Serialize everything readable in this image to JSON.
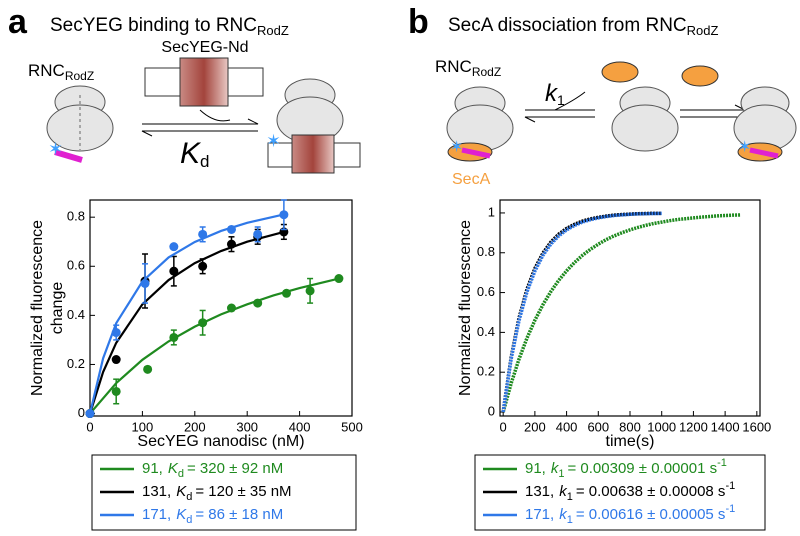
{
  "chart_data": [
    {
      "type": "scatter",
      "panel": "a",
      "title": "SecYEG binding to RNC",
      "title_sub": "RodZ",
      "schematic_labels": [
        "RNC",
        "RodZ",
        "SecYEG-Nd",
        "K",
        "d"
      ],
      "xlabel": "SecYEG nanodisc (nM)",
      "ylabel": [
        "Normalized fluorescence",
        "change"
      ],
      "xlim": [
        0,
        500
      ],
      "ylim": [
        -0.01,
        0.87
      ],
      "xticks": [
        0,
        100,
        200,
        300,
        400,
        500
      ],
      "yticks": [
        0,
        0.2,
        0.4,
        0.6,
        0.8
      ],
      "series": [
        {
          "name": "91,",
          "label": [
            "K",
            "d",
            "= 320 ± 92 nM"
          ],
          "color": "#1f8a1f",
          "x": [
            0,
            50,
            110,
            160,
            215,
            270,
            320,
            375,
            420,
            475
          ],
          "values": [
            0,
            0.09,
            0.18,
            0.31,
            0.37,
            0.43,
            0.45,
            0.49,
            0.5,
            0.55
          ],
          "errors": [
            null,
            0.05,
            null,
            0.03,
            0.05,
            null,
            null,
            null,
            0.05,
            null
          ],
          "fit_x": [
            0,
            50,
            100,
            150,
            200,
            250,
            300,
            350,
            400,
            475
          ],
          "fit_values": [
            0,
            0.124,
            0.219,
            0.294,
            0.354,
            0.404,
            0.445,
            0.481,
            0.511,
            0.55
          ]
        },
        {
          "name": "131,",
          "label": [
            "K",
            "d",
            "= 120 ± 35 nM"
          ],
          "color": "#000000",
          "x": [
            0,
            50,
            105,
            160,
            215,
            270,
            320,
            370
          ],
          "values": [
            0,
            0.22,
            0.54,
            0.58,
            0.6,
            0.69,
            0.72,
            0.74
          ],
          "errors": [
            null,
            null,
            0.11,
            0.06,
            0.03,
            0.03,
            0.03,
            0.03
          ],
          "fit_x": [
            0,
            25,
            50,
            100,
            150,
            200,
            250,
            300,
            370
          ],
          "fit_values": [
            0,
            0.169,
            0.288,
            0.445,
            0.544,
            0.613,
            0.662,
            0.7,
            0.74
          ]
        },
        {
          "name": "171,",
          "label": [
            "K",
            "d",
            "= 86 ± 18 nM"
          ],
          "color": "#2f78e8",
          "x": [
            0,
            50,
            105,
            160,
            215,
            270,
            320,
            370
          ],
          "values": [
            0,
            0.33,
            0.53,
            0.68,
            0.73,
            0.75,
            0.73,
            0.81
          ],
          "errors": [
            null,
            0.03,
            0.08,
            null,
            0.03,
            null,
            0.03,
            0.06
          ],
          "fit_x": [
            0,
            25,
            50,
            100,
            150,
            200,
            250,
            300,
            370
          ],
          "fit_values": [
            0,
            0.225,
            0.368,
            0.538,
            0.636,
            0.699,
            0.744,
            0.777,
            0.811
          ]
        }
      ]
    },
    {
      "type": "line",
      "panel": "b",
      "title": "SecA dissociation from RNC",
      "title_sub": "RodZ",
      "schematic_labels": [
        "RNC",
        "RodZ",
        "k",
        "1",
        "SecA"
      ],
      "xlabel": "time(s)",
      "ylabel": [
        "Normalized fluorescence"
      ],
      "xlim": [
        -20,
        1620
      ],
      "ylim": [
        -0.02,
        1.065
      ],
      "xticks": [
        0,
        200,
        400,
        600,
        800,
        1000,
        1200,
        1400,
        1600
      ],
      "yticks": [
        0,
        0.2,
        0.4,
        0.6,
        0.8,
        1
      ],
      "series": [
        {
          "name": "91,",
          "label": [
            "k",
            "1",
            "= 0.00309 ± 0.00001 s",
            "-1"
          ],
          "color": "#1f8a1f",
          "x": [
            0,
            50,
            100,
            150,
            200,
            250,
            300,
            350,
            400,
            450,
            500,
            550,
            600,
            650,
            700,
            750,
            800,
            850,
            900,
            950,
            1000,
            1050,
            1100,
            1150,
            1200,
            1250,
            1300,
            1350,
            1400,
            1450,
            1500
          ],
          "values": [
            0,
            0.143,
            0.266,
            0.371,
            0.461,
            0.538,
            0.604,
            0.661,
            0.709,
            0.751,
            0.787,
            0.817,
            0.843,
            0.866,
            0.885,
            0.901,
            0.915,
            0.927,
            0.938,
            0.947,
            0.954,
            0.961,
            0.967,
            0.971,
            0.975,
            0.979,
            0.982,
            0.985,
            0.987,
            0.989,
            0.99
          ]
        },
        {
          "name": "131,",
          "label": [
            "k",
            "1",
            "= 0.00638 ± 0.00008 s",
            "-1"
          ],
          "color": "#000000",
          "x": [
            0,
            50,
            100,
            150,
            200,
            250,
            300,
            350,
            400,
            450,
            500,
            550,
            600,
            650,
            700,
            750,
            800,
            850,
            900,
            950,
            1000
          ],
          "values": [
            0,
            0.273,
            0.472,
            0.616,
            0.721,
            0.797,
            0.853,
            0.893,
            0.922,
            0.943,
            0.959,
            0.97,
            0.978,
            0.984,
            0.989,
            0.992,
            0.994,
            0.996,
            0.997,
            0.998,
            0.998
          ]
        },
        {
          "name": "171,",
          "label": [
            "k",
            "1",
            "= 0.00616 ± 0.00005 s",
            "-1"
          ],
          "color": "#2f78e8",
          "x": [
            0,
            50,
            100,
            150,
            200,
            250,
            300,
            350,
            400,
            450,
            500,
            550,
            600,
            650,
            700,
            750,
            800,
            850,
            900,
            950,
            1000
          ],
          "values": [
            0,
            0.265,
            0.46,
            0.603,
            0.708,
            0.786,
            0.843,
            0.884,
            0.915,
            0.937,
            0.954,
            0.966,
            0.975,
            0.982,
            0.987,
            0.99,
            0.993,
            0.995,
            0.996,
            0.997,
            0.998
          ]
        }
      ]
    }
  ]
}
